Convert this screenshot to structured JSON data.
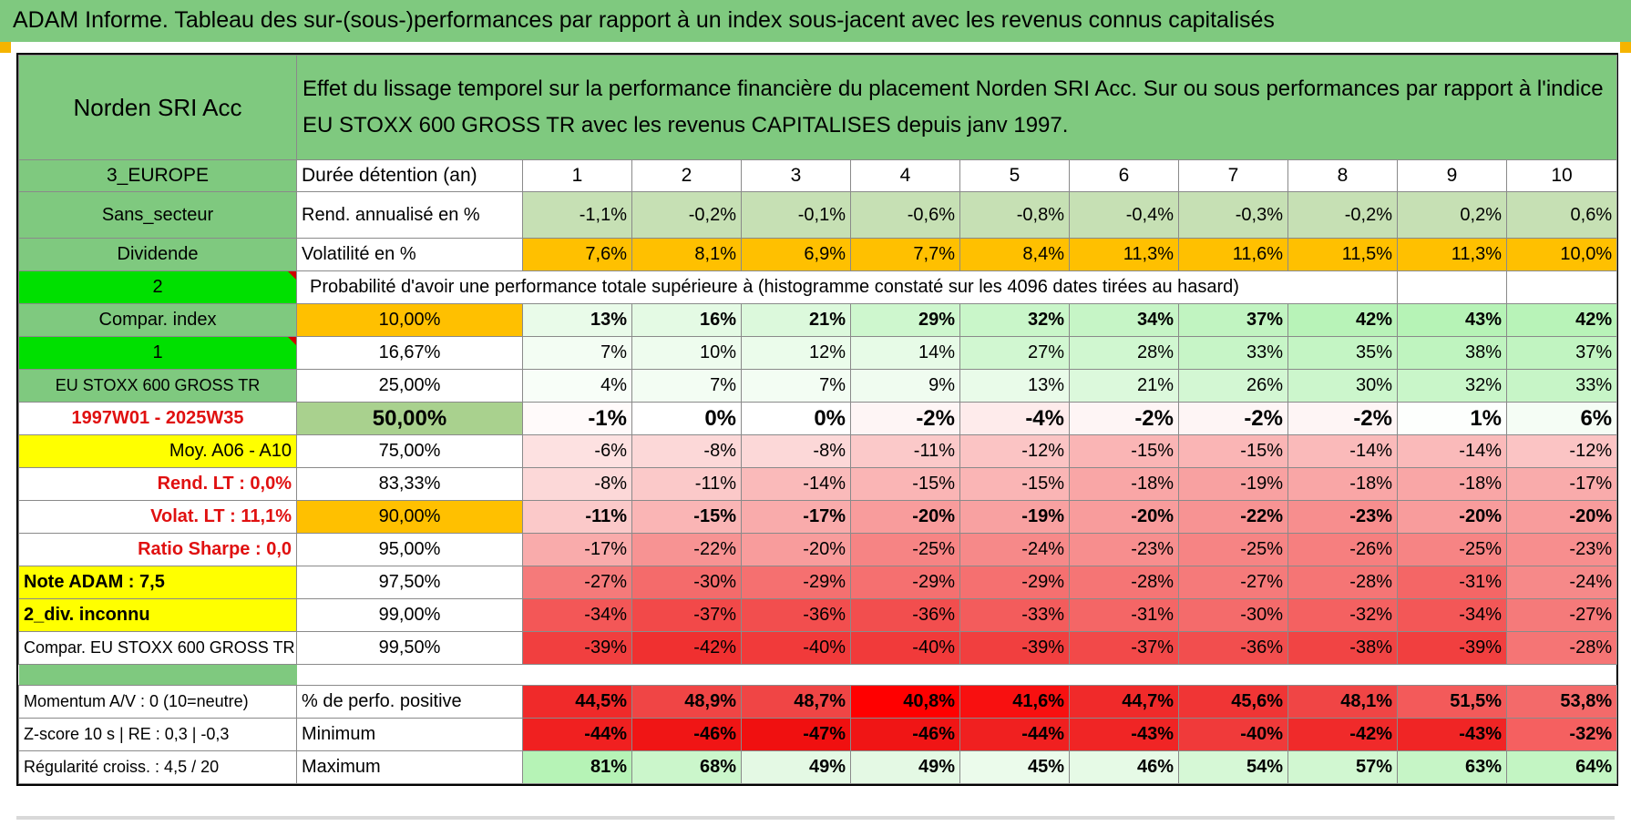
{
  "title": "ADAM Informe. Tableau des sur-(sous-)performances par rapport à un index sous-jacent avec les revenus connus capitalisés",
  "fund_name": "Norden SRI Acc",
  "description": "Effet du lissage temporel sur la performance financière du placement Norden SRI Acc. Sur ou sous performances par rapport à l'indice EU STOXX 600 GROSS TR avec les revenus CAPITALISES depuis janv 1997.",
  "left": {
    "region": "3_EUROPE",
    "sector": "Sans_secteur",
    "dividend": "Dividende",
    "box2": "2",
    "compar_index": "Compar. index",
    "box1": "1",
    "index_name": "EU STOXX 600 GROSS TR",
    "period": "1997W01 - 2025W35",
    "moy": "Moy. A06 - A10",
    "rend_lt": "Rend. LT :    0,0%",
    "volat_lt": "Volat. LT :    11,1%",
    "sharpe": "Ratio Sharpe :    0,0",
    "note": "Note ADAM : 7,5",
    "div_inconnu": "2_div. inconnu",
    "compar_full": "Compar. EU STOXX 600 GROSS TR"
  },
  "labels": {
    "duree": "Durée détention (an)",
    "rend": "Rend. annualisé en %",
    "vol": "Volatilité en %",
    "prob": "Probabilité d'avoir une performance totale supérieure à (histogramme constaté sur les 4096 dates tirées au hasard)",
    "pos": "% de perfo. positive",
    "min": "Minimum",
    "max": "Maximum"
  },
  "years": [
    "1",
    "2",
    "3",
    "4",
    "5",
    "6",
    "7",
    "8",
    "9",
    "10"
  ],
  "rend": [
    "-1,1%",
    "-0,2%",
    "-0,1%",
    "-0,6%",
    "-0,8%",
    "-0,4%",
    "-0,3%",
    "-0,2%",
    "0,2%",
    "0,6%"
  ],
  "vol": [
    "7,6%",
    "8,1%",
    "6,9%",
    "7,7%",
    "8,4%",
    "11,3%",
    "11,6%",
    "11,5%",
    "11,3%",
    "10,0%"
  ],
  "quantiles": [
    {
      "p": "10,00%",
      "v": [
        "13%",
        "16%",
        "21%",
        "29%",
        "32%",
        "34%",
        "37%",
        "42%",
        "43%",
        "42%"
      ]
    },
    {
      "p": "16,67%",
      "v": [
        "7%",
        "10%",
        "12%",
        "14%",
        "27%",
        "28%",
        "33%",
        "35%",
        "38%",
        "37%"
      ]
    },
    {
      "p": "25,00%",
      "v": [
        "4%",
        "7%",
        "7%",
        "9%",
        "13%",
        "21%",
        "26%",
        "30%",
        "32%",
        "33%"
      ]
    },
    {
      "p": "50,00%",
      "v": [
        "-1%",
        "0%",
        "0%",
        "-2%",
        "-4%",
        "-2%",
        "-2%",
        "-2%",
        "1%",
        "6%"
      ]
    },
    {
      "p": "75,00%",
      "v": [
        "-6%",
        "-8%",
        "-8%",
        "-11%",
        "-12%",
        "-15%",
        "-15%",
        "-14%",
        "-14%",
        "-12%"
      ]
    },
    {
      "p": "83,33%",
      "v": [
        "-8%",
        "-11%",
        "-14%",
        "-15%",
        "-15%",
        "-18%",
        "-19%",
        "-18%",
        "-18%",
        "-17%"
      ]
    },
    {
      "p": "90,00%",
      "v": [
        "-11%",
        "-15%",
        "-17%",
        "-20%",
        "-19%",
        "-20%",
        "-22%",
        "-23%",
        "-20%",
        "-20%"
      ]
    },
    {
      "p": "95,00%",
      "v": [
        "-17%",
        "-22%",
        "-20%",
        "-25%",
        "-24%",
        "-23%",
        "-25%",
        "-26%",
        "-25%",
        "-23%"
      ]
    },
    {
      "p": "97,50%",
      "v": [
        "-27%",
        "-30%",
        "-29%",
        "-29%",
        "-29%",
        "-28%",
        "-27%",
        "-28%",
        "-31%",
        "-24%"
      ]
    },
    {
      "p": "99,00%",
      "v": [
        "-34%",
        "-37%",
        "-36%",
        "-36%",
        "-33%",
        "-31%",
        "-30%",
        "-32%",
        "-34%",
        "-27%"
      ]
    },
    {
      "p": "99,50%",
      "v": [
        "-39%",
        "-42%",
        "-40%",
        "-40%",
        "-39%",
        "-37%",
        "-36%",
        "-38%",
        "-39%",
        "-28%"
      ]
    }
  ],
  "stats_left": {
    "momentum": "Momentum A/V : 0 (10=neutre)",
    "zscore": "Z-score 10 s | RE : 0,3 | -0,3",
    "regularite": "Régularité croiss. : 4,5 / 20"
  },
  "pos": [
    "44,5%",
    "48,9%",
    "48,7%",
    "40,8%",
    "41,6%",
    "44,7%",
    "45,6%",
    "48,1%",
    "51,5%",
    "53,8%"
  ],
  "min": [
    "-44%",
    "-46%",
    "-47%",
    "-46%",
    "-44%",
    "-43%",
    "-40%",
    "-42%",
    "-43%",
    "-32%"
  ],
  "max": [
    "81%",
    "68%",
    "49%",
    "49%",
    "45%",
    "46%",
    "54%",
    "57%",
    "63%",
    "64%"
  ],
  "colors": {
    "header_green": "#7fc97f",
    "bright_green": "#00e000",
    "yellow": "#ffff00",
    "orange": "#ffc000",
    "red_text": "#e01010",
    "pos_cells": [
      "#f02a2a",
      "#f04545",
      "#f04545",
      "#ff0000",
      "#f81010",
      "#f02a2a",
      "#f03535",
      "#f04545",
      "#f35a5a",
      "#f36a6a"
    ],
    "min_cells": [
      "#f02020",
      "#f01515",
      "#f01010",
      "#f01515",
      "#f02020",
      "#f02525",
      "#f03a3a",
      "#f02a2a",
      "#f02525",
      "#f56060"
    ],
    "max_cells": [
      "#b6f3b6",
      "#cbf6cb",
      "#e4f9e4",
      "#e4f9e4",
      "#ebfbeb",
      "#e6faE6",
      "#d6f8d6",
      "#d1f7d1",
      "#c6f5c6",
      "#c3f5c3"
    ]
  }
}
